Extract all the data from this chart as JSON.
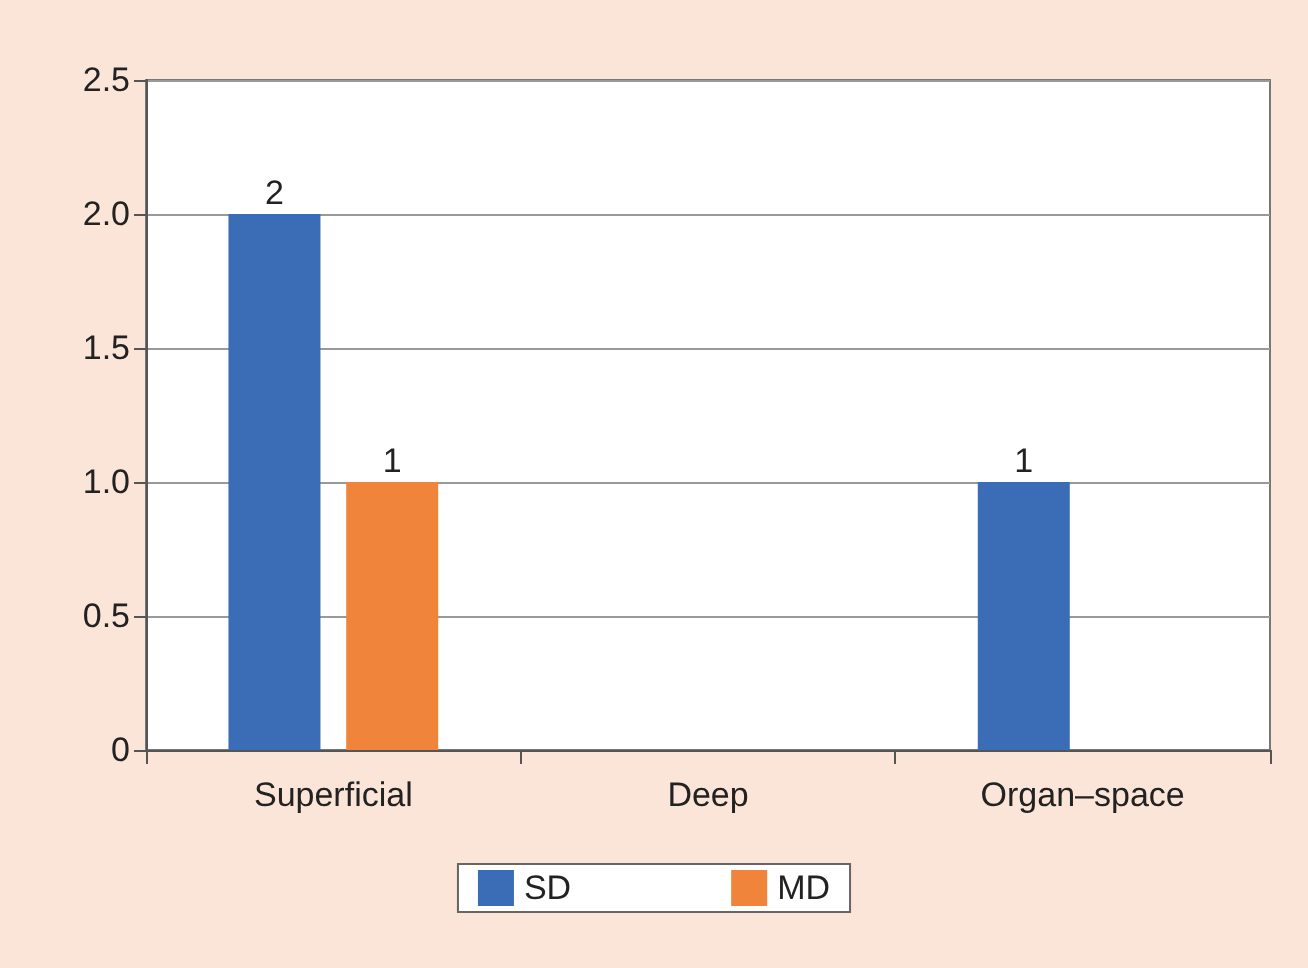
{
  "chart_data": {
    "type": "bar",
    "categories": [
      "Superficial",
      "Deep",
      "Organ–space"
    ],
    "series": [
      {
        "name": "SD",
        "color": "#3a6db5",
        "values": [
          2,
          0,
          1
        ],
        "value_labels": [
          "2",
          null,
          "1"
        ]
      },
      {
        "name": "MD",
        "color": "#f0843a",
        "values": [
          1,
          0,
          0
        ],
        "value_labels": [
          "1",
          null,
          null
        ]
      }
    ],
    "ylim": [
      0,
      2.5
    ],
    "yticks": [
      0,
      0.5,
      {
        "value": 1,
        "label": "1.0"
      },
      1.5,
      {
        "value": 2,
        "label": "2.0"
      },
      2.5
    ],
    "grid": "y",
    "legend": "bottom"
  }
}
